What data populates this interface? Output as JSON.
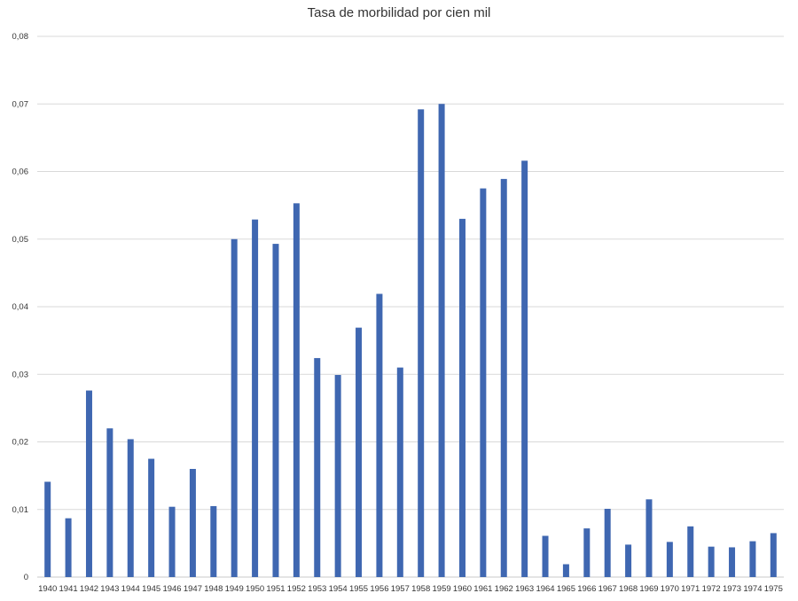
{
  "chart_data": {
    "type": "bar",
    "title": "Tasa de morbilidad por cien mil",
    "xlabel": "",
    "ylabel": "",
    "ylim": [
      0,
      0.08
    ],
    "yticks": [
      "0",
      "0,01",
      "0,02",
      "0,03",
      "0,04",
      "0,05",
      "0,06",
      "0,07",
      "0,08"
    ],
    "grid": true,
    "bar_color": "#3F67B1",
    "categories": [
      "1940",
      "1941",
      "1942",
      "1943",
      "1944",
      "1945",
      "1946",
      "1947",
      "1948",
      "1949",
      "1950",
      "1951",
      "1952",
      "1953",
      "1954",
      "1955",
      "1956",
      "1957",
      "1958",
      "1959",
      "1960",
      "1961",
      "1962",
      "1963",
      "1964",
      "1965",
      "1966",
      "1967",
      "1968",
      "1969",
      "1970",
      "1971",
      "1972",
      "1973",
      "1974",
      "1975"
    ],
    "values": [
      0.0141,
      0.0087,
      0.0276,
      0.022,
      0.0204,
      0.0175,
      0.0104,
      0.016,
      0.0105,
      0.05,
      0.0529,
      0.0493,
      0.0553,
      0.0324,
      0.0299,
      0.0369,
      0.0419,
      0.031,
      0.0692,
      0.07,
      0.053,
      0.0575,
      0.0589,
      0.0616,
      0.0061,
      0.0019,
      0.0072,
      0.0101,
      0.0048,
      0.0115,
      0.0052,
      0.0075,
      0.0045,
      0.0044,
      0.0053,
      0.0065
    ]
  }
}
